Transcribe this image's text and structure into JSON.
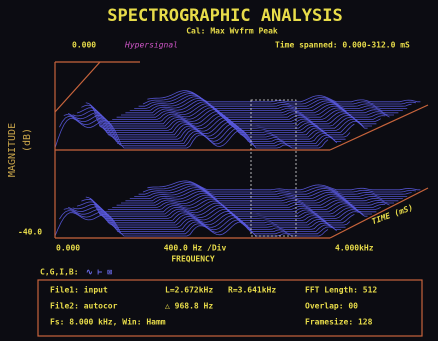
{
  "header": {
    "title": "SPECTROGRAPHIC ANALYSIS",
    "calibration": "Cal: Max Wvfrm Peak",
    "start": "0.000",
    "brand": "Hypersignal",
    "time_spanned": "Time spanned: 0.000-312.0 mS"
  },
  "plot": {
    "y_label": "MAGNITUDE",
    "y_unit": "(dB)",
    "y_min": "-40.0",
    "x_min": "0.000",
    "x_div": "400.0 Hz /Div",
    "x_label": "FREQUENCY",
    "x_max": "4.000kHz",
    "z_label": "TIME (mS)"
  },
  "status": {
    "cursor_label": "C,G,I,B:"
  },
  "info": {
    "rows": [
      [
        "File1: input",
        "L=2.672kHz",
        "R=3.641kHz",
        "FFT Length: 512"
      ],
      [
        "File2: autocor",
        "△ 968.8 Hz",
        "",
        "Overlap: 00"
      ],
      [
        "Fs: 8.000 kHz, Win: Hamm",
        "",
        "",
        "Framesize: 128"
      ]
    ]
  }
}
